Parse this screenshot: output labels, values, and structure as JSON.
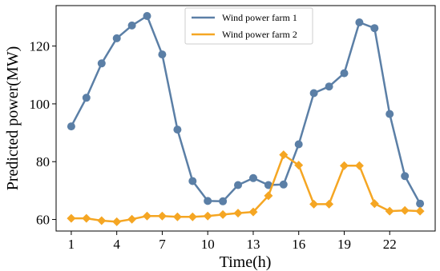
{
  "chart_data": {
    "type": "line",
    "xlabel": "Time(h)",
    "ylabel": "Predicted power(MW)",
    "x": [
      1,
      2,
      3,
      4,
      5,
      6,
      7,
      8,
      9,
      10,
      11,
      12,
      13,
      14,
      15,
      16,
      17,
      18,
      19,
      20,
      21,
      22,
      23,
      24
    ],
    "xticks": [
      "1",
      "4",
      "7",
      "10",
      "13",
      "16",
      "19",
      "22"
    ],
    "xtick_values": [
      1,
      4,
      7,
      10,
      13,
      16,
      19,
      22
    ],
    "yticks": [
      "60",
      "80",
      "100",
      "120"
    ],
    "ytick_values": [
      60,
      80,
      100,
      120
    ],
    "xlim": [
      0,
      25
    ],
    "ylim": [
      56,
      134
    ],
    "grid": false,
    "legend_position": "top-center",
    "series": [
      {
        "name": "Wind power farm 1",
        "color": "#5b7fa6",
        "marker": "circle",
        "values": [
          92.2,
          102.1,
          114.0,
          122.7,
          127.1,
          130.4,
          117.1,
          91.1,
          73.3,
          66.4,
          66.3,
          71.9,
          74.3,
          71.9,
          72.1,
          86.0,
          103.7,
          106.0,
          110.6,
          128.2,
          126.2,
          96.5,
          75.0,
          65.5
        ]
      },
      {
        "name": "Wind power farm 2",
        "color": "#f5a623",
        "marker": "diamond",
        "values": [
          60.4,
          60.4,
          59.6,
          59.2,
          60.1,
          61.2,
          61.2,
          60.9,
          60.9,
          61.2,
          61.7,
          62.2,
          62.6,
          68.2,
          82.4,
          78.8,
          65.3,
          65.3,
          78.6,
          78.6,
          65.5,
          62.9,
          63.1,
          62.9
        ]
      }
    ]
  }
}
